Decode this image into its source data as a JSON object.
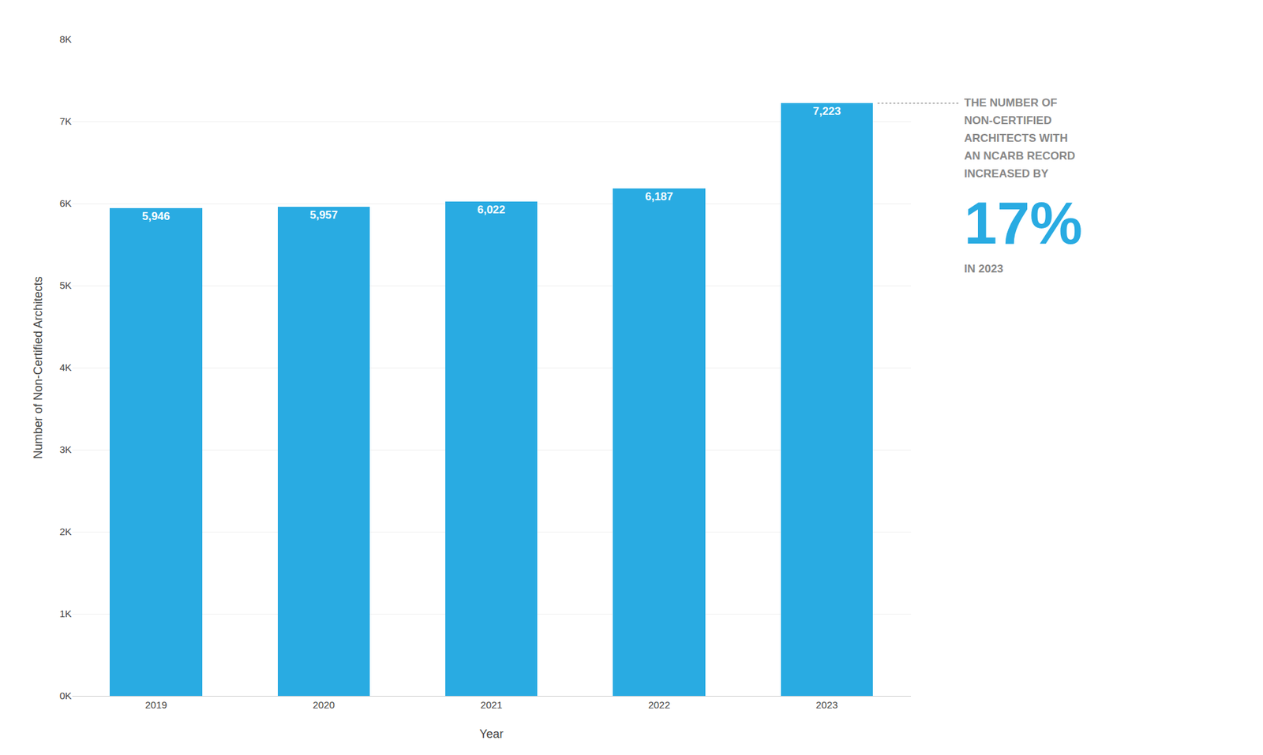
{
  "chart_data": {
    "type": "bar",
    "categories": [
      "2019",
      "2020",
      "2021",
      "2022",
      "2023"
    ],
    "values": [
      5946,
      5957,
      6022,
      6187,
      7223
    ],
    "value_labels": [
      "5,946",
      "5,957",
      "6,022",
      "6,187",
      "7,223"
    ],
    "data_labels": true,
    "color": "#29ABE2",
    "xlabel": "Year",
    "ylabel": "Number of Non-Certified Architects",
    "ylim": [
      0,
      8000
    ],
    "yticks": [
      {
        "value": 0,
        "label": "0K"
      },
      {
        "value": 1000,
        "label": "1K"
      },
      {
        "value": 2000,
        "label": "2K"
      },
      {
        "value": 3000,
        "label": "3K"
      },
      {
        "value": 4000,
        "label": "4K"
      },
      {
        "value": 5000,
        "label": "5K"
      },
      {
        "value": 6000,
        "label": "6K"
      },
      {
        "value": 7000,
        "label": "7K"
      },
      {
        "value": 8000,
        "label": "8K"
      }
    ],
    "grid": true,
    "annotation": {
      "lines": [
        "THE NUMBER OF",
        "NON-CERTIFIED",
        "ARCHITECTS WITH",
        "AN NCARB RECORD",
        "INCREASED BY"
      ],
      "highlight": "17%",
      "footer": "IN 2023"
    }
  }
}
